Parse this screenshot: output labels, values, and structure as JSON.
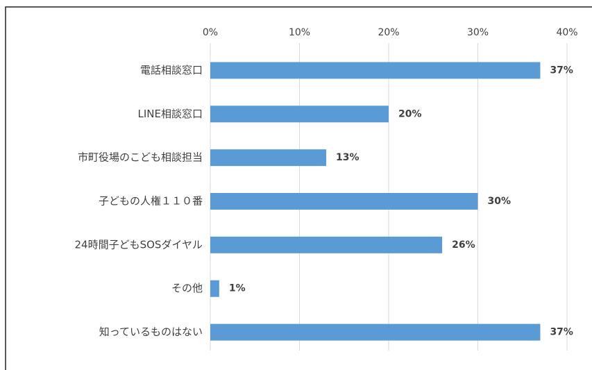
{
  "chart_data": {
    "type": "hbar",
    "categories": [
      "電話相談窓口",
      "LINE相談窓口",
      "市町役場のこども相談担当",
      "子どもの人権１１０番",
      "24時間子どもSOSダイヤル",
      "その他",
      "知っているものはない"
    ],
    "values": [
      37,
      20,
      13,
      30,
      26,
      1,
      37
    ],
    "value_labels": [
      "37%",
      "20%",
      "13%",
      "30%",
      "26%",
      "1%",
      "37%"
    ],
    "color": "#5b9bd5",
    "xlim": [
      0,
      40
    ],
    "xticks": [
      {
        "value": 0,
        "label": "0%"
      },
      {
        "value": 10,
        "label": "10%"
      },
      {
        "value": 20,
        "label": "20%"
      },
      {
        "value": 30,
        "label": "30%"
      },
      {
        "value": 40,
        "label": "40%"
      }
    ],
    "grid": true
  }
}
